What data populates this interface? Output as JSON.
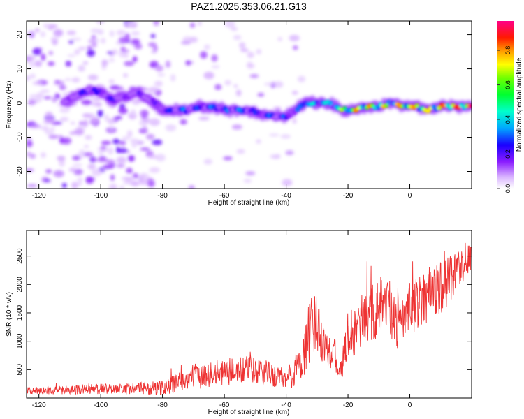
{
  "title": "PAZ1.2025.353.06.21.G13",
  "chart_data": [
    {
      "type": "heatmap",
      "name": "spectrogram",
      "xlabel": "Height of straight line (km)",
      "ylabel": "Frequency (Hz)",
      "xlim": [
        -124,
        20
      ],
      "ylim": [
        -25,
        24
      ],
      "xticks": [
        "-120",
        "-100",
        "-80",
        "-60",
        "-40",
        "-20",
        "0"
      ],
      "yticks": [
        "-20",
        "-10",
        "0",
        "10",
        "20"
      ],
      "colorbar": {
        "label": "Normalized spectral amplitude",
        "range": [
          0,
          0.97
        ],
        "ticks": [
          "0.0",
          "0.2",
          "0.4",
          "0.6",
          "0.8"
        ],
        "colormap": "hsv-rainbow (white-violet-blue-cyan-green-yellow-red-magenta)"
      },
      "ridge": {
        "description": "main signal ridge: frequency (Hz) vs height (km), with normalized amplitude",
        "x": [
          -112,
          -108,
          -104,
          -100,
          -96,
          -92,
          -88,
          -84,
          -80,
          -76,
          -72,
          -68,
          -64,
          -60,
          -56,
          -52,
          -48,
          -44,
          -40,
          -37,
          -34,
          -30,
          -26,
          -22,
          -18,
          -14,
          -10,
          -6,
          -2,
          2,
          6,
          10,
          14,
          18
        ],
        "y": [
          0,
          2,
          4,
          3,
          1,
          2,
          3,
          1,
          -2,
          -2,
          -2,
          -1,
          -1,
          -2,
          -2,
          -2,
          -3,
          -4,
          -4,
          -2,
          0,
          0,
          0,
          -2,
          -2,
          -1,
          -1,
          0,
          -1,
          -1,
          -2,
          -1,
          -1,
          -1
        ],
        "amplitude": [
          0.12,
          0.2,
          0.28,
          0.28,
          0.22,
          0.2,
          0.2,
          0.15,
          0.28,
          0.32,
          0.3,
          0.3,
          0.32,
          0.32,
          0.35,
          0.32,
          0.3,
          0.32,
          0.3,
          0.25,
          0.5,
          0.45,
          0.5,
          0.7,
          0.75,
          0.8,
          0.75,
          0.7,
          0.85,
          0.9,
          0.85,
          0.9,
          0.92,
          0.9
        ]
      }
    },
    {
      "type": "line",
      "name": "snr",
      "xlabel": "Height of straight line (km)",
      "ylabel": "SNR (10 * v/v)",
      "xlim": [
        -124,
        20
      ],
      "ylim": [
        0,
        2950
      ],
      "xticks": [
        "-120",
        "-100",
        "-80",
        "-60",
        "-40",
        "-20",
        "0"
      ],
      "yticks": [
        "500",
        "1000",
        "1500",
        "2000",
        "2500"
      ],
      "color": "#ee3333",
      "envelope": {
        "x": [
          -124,
          -112,
          -104,
          -96,
          -88,
          -80,
          -76,
          -70,
          -64,
          -58,
          -52,
          -46,
          -40,
          -35,
          -33,
          -30,
          -28,
          -25,
          -22,
          -20,
          -16,
          -12,
          -8,
          -4,
          0,
          4,
          8,
          12,
          16,
          20
        ],
        "mean": [
          130,
          140,
          160,
          170,
          170,
          180,
          260,
          380,
          420,
          470,
          500,
          430,
          320,
          600,
          1100,
          1350,
          1000,
          800,
          500,
          1100,
          1250,
          1500,
          1600,
          1300,
          1500,
          1800,
          1900,
          2100,
          2300,
          2500
        ],
        "amp": [
          80,
          100,
          130,
          120,
          140,
          170,
          220,
          280,
          300,
          320,
          330,
          300,
          250,
          500,
          750,
          700,
          500,
          400,
          300,
          550,
          600,
          700,
          850,
          600,
          600,
          650,
          700,
          650,
          450,
          350
        ]
      }
    }
  ]
}
